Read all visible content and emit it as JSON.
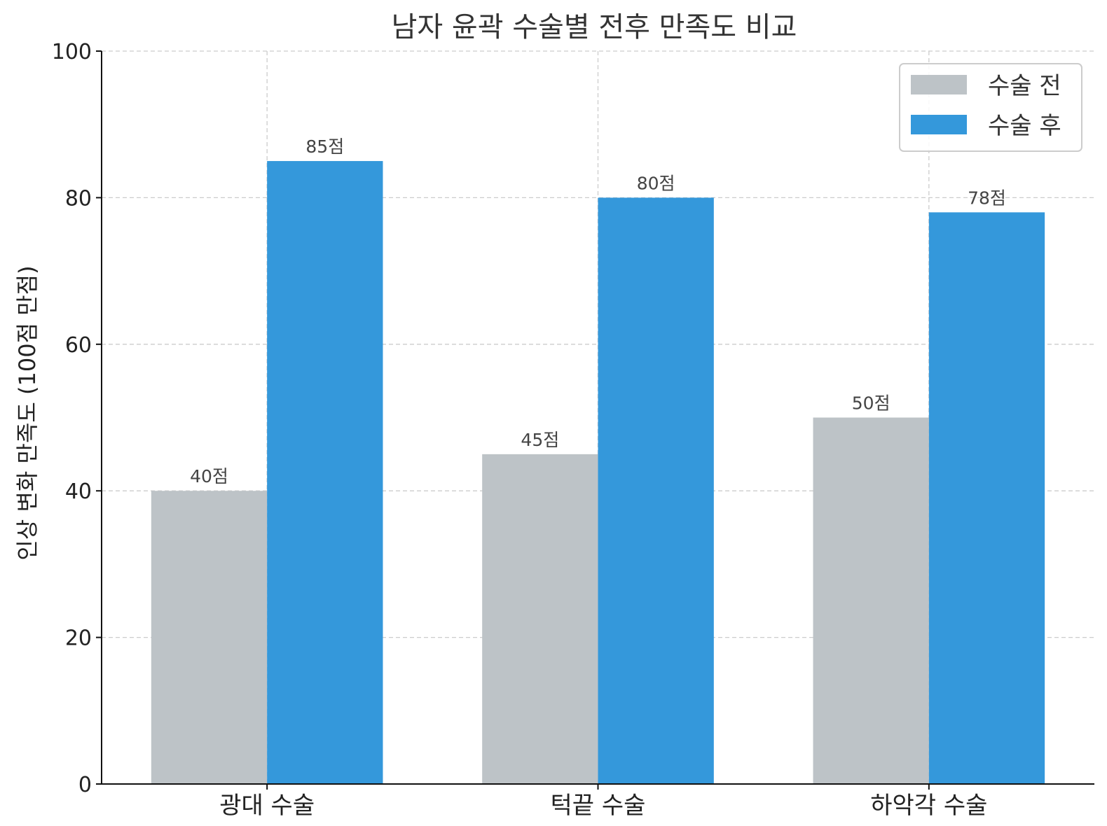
{
  "chart_data": {
    "type": "bar",
    "title": "남자 윤곽 수술별 전후 만족도 비교",
    "xlabel": "",
    "ylabel": "인상 변화 만족도 (100점 만점)",
    "categories": [
      "광대 수술",
      "턱끝 수술",
      "하악각 수술"
    ],
    "series": [
      {
        "name": "수술 전",
        "color": "#bdc3c7",
        "values": [
          40,
          45,
          50
        ],
        "labels": [
          "40점",
          "45점",
          "50점"
        ]
      },
      {
        "name": "수술 후",
        "color": "#3498db",
        "values": [
          85,
          80,
          78
        ],
        "labels": [
          "85점",
          "80점",
          "78점"
        ]
      }
    ],
    "ylim": [
      0,
      100
    ],
    "yticks": [
      "0",
      "20",
      "40",
      "60",
      "80",
      "100"
    ],
    "grid": true,
    "legend_position": "top-right"
  }
}
